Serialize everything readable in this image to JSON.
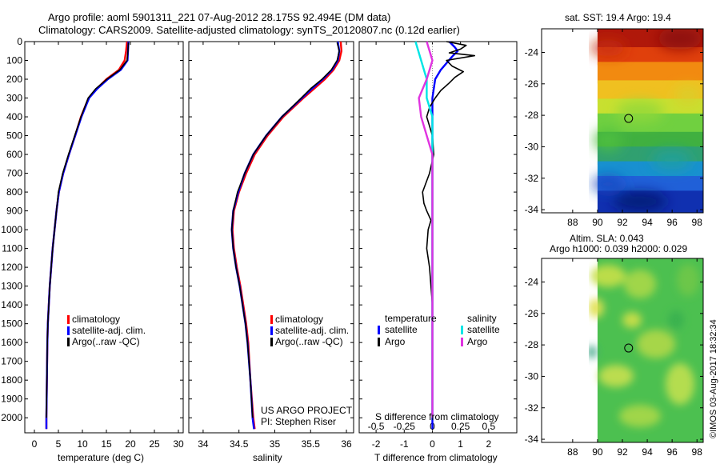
{
  "header": {
    "line1": "Argo profile: aoml 5901311_221 07-Aug-2012 28.175S 92.494E (DM data)",
    "line2": "Climatology: CARS2009. Satellite-adjusted climatology: synTS_20120807.nc (0.12d earlier)"
  },
  "map_top": {
    "title": "sat. SST: 19.4 Argo: 19.4"
  },
  "map_bottom": {
    "title1": "Altim. SLA: 0.043",
    "title2": "Argo h1000: 0.039 h2000: 0.029"
  },
  "credits": {
    "project": "US ARGO PROJECT",
    "pi": "PI: Stephen Riser",
    "imos": "©IMOS 03-Aug-2017 18:32:34"
  },
  "colors": {
    "climatology": "#ff0000",
    "satellite": "#0000ff",
    "argo": "#000000",
    "satellite_s": "#00e5e5",
    "argo_s": "#e033e0"
  },
  "chart_data": [
    {
      "type": "line",
      "xlabel": "temperature (deg C)",
      "ylabel": "",
      "xlim": [
        -2,
        31
      ],
      "ylim": [
        2080,
        0
      ],
      "xticks": [
        0,
        5,
        10,
        15,
        20,
        25,
        30
      ],
      "yticks": [
        0,
        100,
        200,
        300,
        400,
        500,
        600,
        700,
        800,
        900,
        1000,
        1100,
        1200,
        1300,
        1400,
        1500,
        1600,
        1700,
        1800,
        1900,
        2000
      ],
      "legend": [
        "climatology",
        "satellite-adj. clim.",
        "Argo(..raw -QC)"
      ],
      "series": [
        {
          "name": "climatology",
          "color": "#ff0000",
          "x": [
            19.3,
            19.1,
            18.8,
            17.6,
            15.0,
            13.0,
            11.3,
            9.7,
            8.5,
            7.2,
            6.0,
            5.1,
            4.6,
            4.2,
            3.8,
            3.5,
            3.2,
            3.0,
            2.8,
            2.7,
            2.6,
            2.5,
            2.5
          ],
          "y": [
            0,
            50,
            100,
            150,
            200,
            250,
            300,
            400,
            500,
            600,
            700,
            800,
            900,
            1000,
            1100,
            1200,
            1300,
            1400,
            1500,
            1600,
            1800,
            2000,
            2060
          ]
        },
        {
          "name": "satellite-adj. clim.",
          "color": "#0000ff",
          "x": [
            19.6,
            19.5,
            19.4,
            18.0,
            15.3,
            13.1,
            11.4,
            9.8,
            8.5,
            7.2,
            6.0,
            5.1,
            4.6,
            4.2,
            3.8,
            3.5,
            3.2,
            3.0,
            2.8,
            2.7,
            2.6,
            2.5,
            2.5
          ],
          "y": [
            0,
            50,
            100,
            150,
            200,
            250,
            300,
            400,
            500,
            600,
            700,
            800,
            900,
            1000,
            1100,
            1200,
            1300,
            1400,
            1500,
            1600,
            1800,
            2000,
            2060
          ]
        },
        {
          "name": "Argo(..raw -QC)",
          "color": "#000000",
          "x": [
            19.6,
            19.5,
            19.3,
            17.8,
            15.1,
            12.8,
            11.2,
            9.7,
            8.4,
            7.1,
            5.9,
            5.0,
            4.6,
            4.2,
            3.8,
            3.5,
            3.2,
            3.0,
            2.8,
            2.7,
            2.6,
            2.5
          ],
          "y": [
            5,
            50,
            100,
            150,
            200,
            250,
            300,
            400,
            500,
            600,
            700,
            800,
            900,
            1000,
            1100,
            1200,
            1300,
            1400,
            1500,
            1600,
            1800,
            2000
          ]
        }
      ]
    },
    {
      "type": "line",
      "xlabel": "salinity",
      "ylabel": "",
      "xlim": [
        33.8,
        36.1
      ],
      "ylim": [
        2080,
        0
      ],
      "xticks": [
        34,
        34.5,
        35,
        35.5,
        36
      ],
      "legend": [
        "climatology",
        "satellite-adj. clim.",
        "Argo(..raw -QC)"
      ],
      "series": [
        {
          "name": "climatology",
          "color": "#ff0000",
          "x": [
            35.92,
            35.93,
            35.9,
            35.82,
            35.7,
            35.55,
            35.4,
            35.12,
            34.9,
            34.72,
            34.6,
            34.5,
            34.43,
            34.41,
            34.43,
            34.47,
            34.52,
            34.56,
            34.6,
            34.63,
            34.66,
            34.7,
            34.72
          ],
          "y": [
            0,
            50,
            100,
            150,
            200,
            250,
            300,
            400,
            500,
            600,
            700,
            800,
            900,
            1000,
            1100,
            1200,
            1300,
            1400,
            1500,
            1600,
            1800,
            2000,
            2060
          ]
        },
        {
          "name": "satellite-adj. clim.",
          "color": "#0000ff",
          "x": [
            35.88,
            35.9,
            35.88,
            35.8,
            35.67,
            35.52,
            35.38,
            35.1,
            34.88,
            34.7,
            34.58,
            34.49,
            34.42,
            34.4,
            34.42,
            34.46,
            34.51,
            34.55,
            34.59,
            34.62,
            34.66,
            34.69,
            34.71
          ],
          "y": [
            0,
            50,
            100,
            150,
            200,
            250,
            300,
            400,
            500,
            600,
            700,
            800,
            900,
            1000,
            1100,
            1200,
            1300,
            1400,
            1500,
            1600,
            1800,
            2000,
            2060
          ]
        },
        {
          "name": "Argo(..raw -QC)",
          "color": "#000000",
          "x": [
            35.87,
            35.9,
            35.87,
            35.79,
            35.66,
            35.5,
            35.37,
            35.1,
            34.88,
            34.7,
            34.58,
            34.48,
            34.42,
            34.4,
            34.42,
            34.46,
            34.51,
            34.55,
            34.59,
            34.62,
            34.66,
            34.69
          ],
          "y": [
            5,
            50,
            100,
            150,
            200,
            250,
            300,
            400,
            500,
            600,
            700,
            800,
            900,
            1000,
            1100,
            1200,
            1300,
            1400,
            1500,
            1600,
            1800,
            2000
          ]
        }
      ]
    },
    {
      "type": "line",
      "xlabel": "T difference from climatology",
      "ylabel": "",
      "x2label": "S difference from climatology",
      "xlim": [
        -2.6,
        3.0
      ],
      "ylim": [
        2080,
        0
      ],
      "xticks": [
        -2,
        -1,
        0,
        1,
        2
      ],
      "x2ticks": [
        -0.5,
        -0.25,
        0,
        0.25,
        0.5
      ],
      "legend_titles": [
        "temperature",
        "salinity"
      ],
      "legend": [
        "satellite",
        "Argo",
        "satellite",
        "Argo"
      ],
      "series": [
        {
          "name": "satellite",
          "color": "#0000ff",
          "x": [
            0.6,
            0.8,
            0.9,
            0.7,
            0.3,
            0.1,
            0.0,
            0.0,
            0.0,
            0.0,
            0.0,
            0.0,
            0.0,
            0.0,
            0.0,
            0.0,
            0.0,
            0.0,
            0.0,
            0.0,
            0.0
          ],
          "y": [
            0,
            30,
            50,
            80,
            150,
            200,
            300,
            400,
            500,
            600,
            700,
            800,
            900,
            1000,
            1200,
            1400,
            1500,
            1600,
            1800,
            2000,
            2060
          ]
        },
        {
          "name": "Argo",
          "color": "#000000",
          "x": [
            0.5,
            1.2,
            1.0,
            0.6,
            1.5,
            0.5,
            0.7,
            1.1,
            0.8,
            0.6,
            0.3,
            0.1,
            -0.1,
            -0.2,
            0.0,
            0.05,
            -0.1,
            -0.35,
            -0.3,
            -0.2,
            -0.05,
            -0.15,
            -0.2,
            -0.1,
            0.0,
            0.0,
            0.0,
            0.0
          ],
          "y": [
            0,
            20,
            40,
            60,
            75,
            100,
            130,
            160,
            190,
            220,
            260,
            300,
            350,
            400,
            500,
            600,
            700,
            800,
            860,
            900,
            950,
            1000,
            1100,
            1200,
            1400,
            1600,
            1800,
            2000
          ]
        },
        {
          "name": "satellite",
          "color": "#00e5e5",
          "x": [
            -0.15,
            -0.1,
            -0.05,
            -0.05,
            0.0,
            0.0,
            0.0,
            0.0,
            0.0,
            0.0,
            0.0,
            0.0,
            0.0,
            0.0,
            0.0
          ],
          "y": [
            0,
            100,
            200,
            300,
            400,
            500,
            600,
            700,
            800,
            1000,
            1200,
            1400,
            1600,
            1800,
            2000
          ]
        },
        {
          "name": "Argo",
          "color": "#e033e0",
          "x": [
            -0.05,
            0.0,
            -0.05,
            -0.12,
            -0.1,
            -0.05,
            0.0,
            0.0,
            0.0,
            0.0,
            0.0
          ],
          "y": [
            0,
            100,
            200,
            300,
            400,
            500,
            600,
            800,
            1000,
            1500,
            2000
          ]
        }
      ]
    },
    {
      "type": "heatmap",
      "title": "sat. SST: 19.4 Argo: 19.4",
      "xlim": [
        85.5,
        98.5
      ],
      "ylim": [
        -34.2,
        -22.5
      ],
      "xticks": [
        88,
        90,
        92,
        94,
        96,
        98
      ],
      "yticks": [
        -24,
        -26,
        -28,
        -30,
        -32,
        -34
      ],
      "marker": {
        "lon": 92.5,
        "lat": -28.2
      }
    },
    {
      "type": "heatmap",
      "title": "Altim. SLA: 0.043",
      "xlim": [
        85.5,
        98.5
      ],
      "ylim": [
        -34.2,
        -22.5
      ],
      "xticks": [
        88,
        90,
        92,
        94,
        96,
        98
      ],
      "yticks": [
        -24,
        -26,
        -28,
        -30,
        -32,
        -34
      ],
      "marker": {
        "lon": 92.5,
        "lat": -28.2
      }
    }
  ]
}
